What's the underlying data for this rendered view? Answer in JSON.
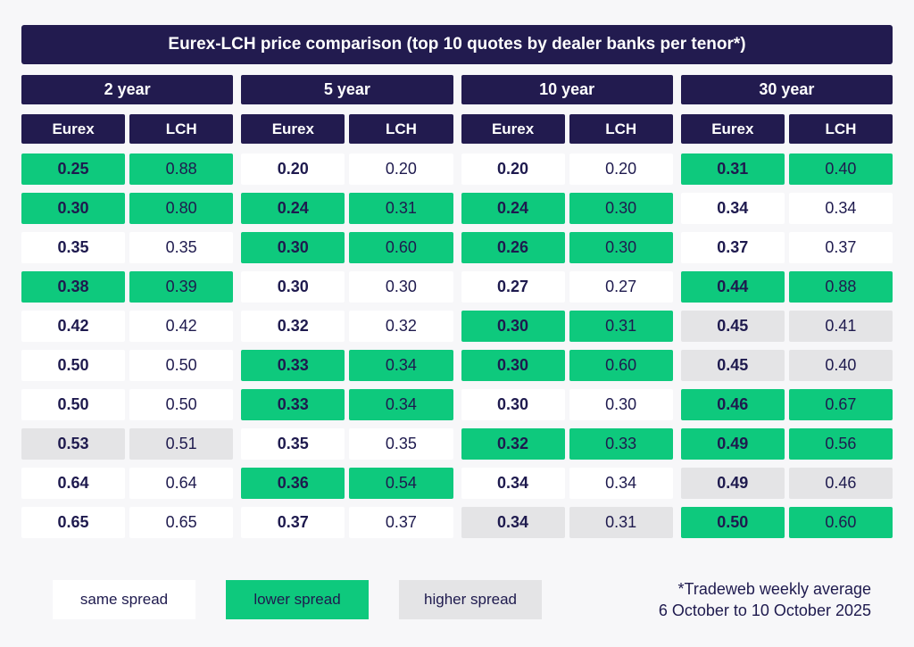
{
  "title": "Eurex-LCH price comparison (top 10 quotes by dealer banks per tenor*)",
  "colors": {
    "navy": "#221b4f",
    "green_lower": "#0ec97d",
    "gray_higher": "#e4e4e6",
    "white_same": "#ffffff",
    "page_bg": "#f7f7f9",
    "text": "#1e1a4e"
  },
  "chart_data": {
    "type": "table",
    "title": "Eurex-LCH price comparison (top 10 quotes by dealer banks per tenor*)",
    "tenors": [
      {
        "label": "2 year",
        "col_headers": [
          "Eurex",
          "LCH"
        ],
        "rows": [
          {
            "eurex": "0.25",
            "lch": "0.88",
            "status": "lower"
          },
          {
            "eurex": "0.30",
            "lch": "0.80",
            "status": "lower"
          },
          {
            "eurex": "0.35",
            "lch": "0.35",
            "status": "same"
          },
          {
            "eurex": "0.38",
            "lch": "0.39",
            "status": "lower"
          },
          {
            "eurex": "0.42",
            "lch": "0.42",
            "status": "same"
          },
          {
            "eurex": "0.50",
            "lch": "0.50",
            "status": "same"
          },
          {
            "eurex": "0.50",
            "lch": "0.50",
            "status": "same"
          },
          {
            "eurex": "0.53",
            "lch": "0.51",
            "status": "higher"
          },
          {
            "eurex": "0.64",
            "lch": "0.64",
            "status": "same"
          },
          {
            "eurex": "0.65",
            "lch": "0.65",
            "status": "same"
          }
        ]
      },
      {
        "label": "5 year",
        "col_headers": [
          "Eurex",
          "LCH"
        ],
        "rows": [
          {
            "eurex": "0.20",
            "lch": "0.20",
            "status": "same"
          },
          {
            "eurex": "0.24",
            "lch": "0.31",
            "status": "lower"
          },
          {
            "eurex": "0.30",
            "lch": "0.60",
            "status": "lower"
          },
          {
            "eurex": "0.30",
            "lch": "0.30",
            "status": "same"
          },
          {
            "eurex": "0.32",
            "lch": "0.32",
            "status": "same"
          },
          {
            "eurex": "0.33",
            "lch": "0.34",
            "status": "lower"
          },
          {
            "eurex": "0.33",
            "lch": "0.34",
            "status": "lower"
          },
          {
            "eurex": "0.35",
            "lch": "0.35",
            "status": "same"
          },
          {
            "eurex": "0.36",
            "lch": "0.54",
            "status": "lower"
          },
          {
            "eurex": "0.37",
            "lch": "0.37",
            "status": "same"
          }
        ]
      },
      {
        "label": "10 year",
        "col_headers": [
          "Eurex",
          "LCH"
        ],
        "rows": [
          {
            "eurex": "0.20",
            "lch": "0.20",
            "status": "same"
          },
          {
            "eurex": "0.24",
            "lch": "0.30",
            "status": "lower"
          },
          {
            "eurex": "0.26",
            "lch": "0.30",
            "status": "lower"
          },
          {
            "eurex": "0.27",
            "lch": "0.27",
            "status": "same"
          },
          {
            "eurex": "0.30",
            "lch": "0.31",
            "status": "lower"
          },
          {
            "eurex": "0.30",
            "lch": "0.60",
            "status": "lower"
          },
          {
            "eurex": "0.30",
            "lch": "0.30",
            "status": "same"
          },
          {
            "eurex": "0.32",
            "lch": "0.33",
            "status": "lower"
          },
          {
            "eurex": "0.34",
            "lch": "0.34",
            "status": "same"
          },
          {
            "eurex": "0.34",
            "lch": "0.31",
            "status": "higher"
          }
        ]
      },
      {
        "label": "30 year",
        "col_headers": [
          "Eurex",
          "LCH"
        ],
        "rows": [
          {
            "eurex": "0.31",
            "lch": "0.40",
            "status": "lower"
          },
          {
            "eurex": "0.34",
            "lch": "0.34",
            "status": "same"
          },
          {
            "eurex": "0.37",
            "lch": "0.37",
            "status": "same"
          },
          {
            "eurex": "0.44",
            "lch": "0.88",
            "status": "lower"
          },
          {
            "eurex": "0.45",
            "lch": "0.41",
            "status": "higher"
          },
          {
            "eurex": "0.45",
            "lch": "0.40",
            "status": "higher"
          },
          {
            "eurex": "0.46",
            "lch": "0.67",
            "status": "lower"
          },
          {
            "eurex": "0.49",
            "lch": "0.56",
            "status": "lower"
          },
          {
            "eurex": "0.49",
            "lch": "0.46",
            "status": "higher"
          },
          {
            "eurex": "0.50",
            "lch": "0.60",
            "status": "lower"
          }
        ]
      }
    ]
  },
  "legend": [
    {
      "label": "same spread",
      "status": "same"
    },
    {
      "label": "lower spread",
      "status": "lower"
    },
    {
      "label": "higher spread",
      "status": "higher"
    }
  ],
  "footnote": {
    "line1": "*Tradeweb weekly average",
    "line2": "6 October to 10 October 2025"
  }
}
